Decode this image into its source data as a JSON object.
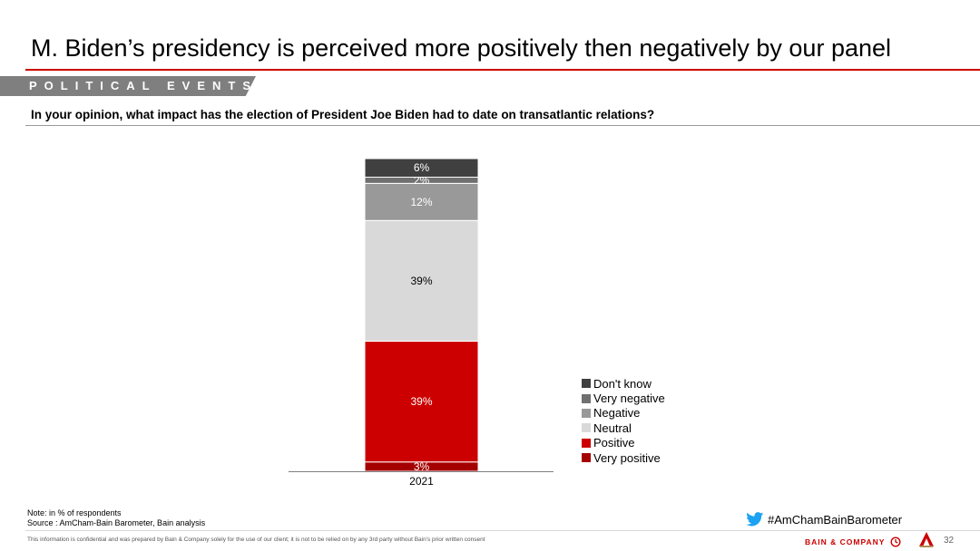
{
  "header": {
    "title": "M. Biden’s presidency is perceived more positively then negatively by our panel",
    "section": "POLITICAL EVENTS",
    "question": "In your opinion, what impact has the election of President Joe Biden had to date on transatlantic relations?"
  },
  "chart_data": {
    "type": "bar",
    "stacked": true,
    "categories": [
      "2021"
    ],
    "series": [
      {
        "name": "Very positive",
        "values": [
          3
        ],
        "color": "#a50000",
        "label_color": "#ffffff"
      },
      {
        "name": "Positive",
        "values": [
          39
        ],
        "color": "#cc0000",
        "label_color": "#ffffff"
      },
      {
        "name": "Neutral",
        "values": [
          39
        ],
        "color": "#d9d9d9",
        "label_color": "#000000"
      },
      {
        "name": "Negative",
        "values": [
          12
        ],
        "color": "#999999",
        "label_color": "#ffffff"
      },
      {
        "name": "Very negative",
        "values": [
          2
        ],
        "color": "#707070",
        "label_color": "#ffffff"
      },
      {
        "name": "Don't know",
        "values": [
          6
        ],
        "color": "#404040",
        "label_color": "#ffffff"
      }
    ],
    "labels": [
      "3%",
      "39%",
      "39%",
      "12%",
      "2%",
      "6%"
    ],
    "ylim": [
      0,
      101
    ],
    "legend_position": "right"
  },
  "legend": {
    "items": [
      {
        "label": "Don't know",
        "color": "#404040"
      },
      {
        "label": "Very negative",
        "color": "#707070"
      },
      {
        "label": "Negative",
        "color": "#999999"
      },
      {
        "label": "Neutral",
        "color": "#d9d9d9"
      },
      {
        "label": "Positive",
        "color": "#cc0000"
      },
      {
        "label": "Very positive",
        "color": "#a50000"
      }
    ]
  },
  "footer": {
    "note": "Note: in % of respondents",
    "source": "Source : AmCham-Bain Barometer, Bain analysis",
    "hashtag": "#AmChamBainBarometer",
    "disclaimer": "This information is confidential and was prepared by Bain & Company solely for the use of our client; it is not to be relied on by any 3rd party without Bain's prior written consent",
    "brand": "BAIN & COMPANY",
    "page_number": "32"
  }
}
